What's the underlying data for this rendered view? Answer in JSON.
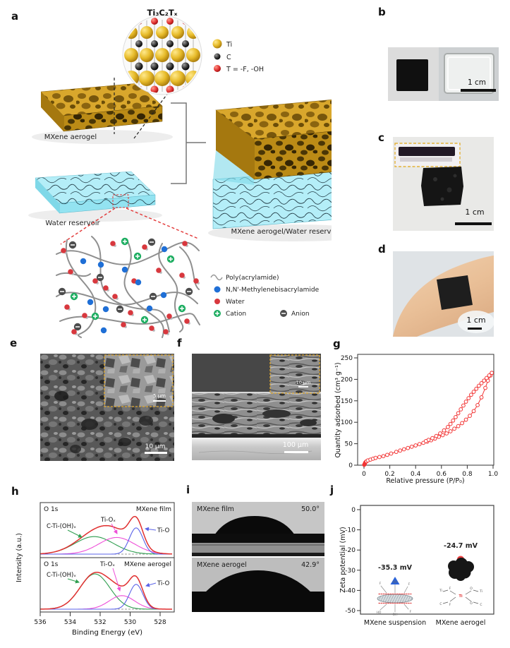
{
  "panels": {
    "a": "a",
    "b": "b",
    "c": "c",
    "d": "d",
    "e": "e",
    "f": "f",
    "g": "g",
    "h": "h",
    "i": "i",
    "j": "j"
  },
  "panel_a": {
    "crystal_title": "Ti₃C₂Tₓ",
    "atom_legend": {
      "ti": "Ti",
      "c": "C",
      "t": "T = -F, -OH"
    },
    "aerogel_label": "MXene aerogel",
    "reservoir_label": "Water reservoir",
    "combined_label": "MXene aerogel/Water reservoir",
    "network_legend": {
      "polymer": "Poly(acrylamide)",
      "crosslinker": "N,N'-Methylenebisacrylamide",
      "water": "Water",
      "cation": "Cation",
      "anion": "Anion"
    }
  },
  "panel_b": {
    "scale": "1 cm"
  },
  "panel_c": {
    "scale": "1 cm"
  },
  "panel_d": {
    "scale": "1 cm"
  },
  "panel_e": {
    "scale": "10 µm",
    "inset_scale": "5 µm"
  },
  "panel_f": {
    "scale": "100 µm",
    "inset_scale": "10 µm"
  },
  "panel_h_labels": {
    "region": "O 1s",
    "film": "MXene film",
    "aerogel": "MXene aerogel",
    "peak_oh": "C-Ti-(OH)ₓ",
    "peak_ox": "Ti-Oₓ",
    "peak_o": "Ti-O",
    "xlabel": "Binding Energy (eV)",
    "ylabel": "Intensity (a.u.)"
  },
  "panel_i": {
    "top_label": "MXene film",
    "top_angle": "50.0°",
    "bottom_label": "MXene aerogel",
    "bottom_angle": "42.9°"
  },
  "panel_j_labels": {
    "ylabel": "Zeta potential (mV)",
    "suspension": "MXene suspension",
    "aerogel": "MXene aerogel",
    "val_suspension": "-35.3 mV",
    "val_aerogel": "-24.7 mV",
    "suspension_atoms": [
      "F",
      "OH",
      "F",
      "HO",
      "OH",
      "F"
    ],
    "aerogel_atoms": [
      "Ti",
      "F",
      "O",
      "Ti",
      "C",
      "F",
      "O",
      "C"
    ],
    "aerogel_center_atom": "Ti"
  },
  "chart_data": [
    {
      "id": "g",
      "type": "line",
      "xlabel": "Relative pressure (P/P₀)",
      "ylabel": "Quantity adsorbed (cm³ g⁻¹)",
      "xlim": [
        0,
        1.0
      ],
      "ylim": [
        0,
        250
      ],
      "grid": false,
      "legend": "none",
      "xticks": [
        0,
        0.2,
        0.4,
        0.6,
        0.8,
        1.0
      ],
      "xtick_labels": [
        "0",
        "0.2",
        "0.4",
        "0.6",
        "0.8",
        "1.0"
      ],
      "yticks": [
        0,
        50,
        100,
        150,
        200,
        250
      ],
      "ytick_labels": [
        "0",
        "50",
        "100",
        "150",
        "200",
        "250"
      ],
      "color": "#f23535",
      "series": [
        {
          "name": "adsorption",
          "x": [
            0.002,
            0.004,
            0.006,
            0.008,
            0.01,
            0.015,
            0.02,
            0.03,
            0.05,
            0.07,
            0.09,
            0.12,
            0.15,
            0.18,
            0.21,
            0.25,
            0.28,
            0.31,
            0.34,
            0.37,
            0.4,
            0.43,
            0.46,
            0.49,
            0.52,
            0.55,
            0.58,
            0.61,
            0.64,
            0.67,
            0.7,
            0.73,
            0.76,
            0.79,
            0.82,
            0.85,
            0.88,
            0.91,
            0.94,
            0.96,
            0.98,
            0.99
          ],
          "y": [
            1,
            2,
            3,
            5,
            6,
            8,
            9,
            11,
            13,
            15,
            17,
            19,
            21,
            24,
            27,
            31,
            34,
            37,
            40,
            43,
            46,
            49,
            52,
            55,
            58,
            62,
            66,
            70,
            74,
            79,
            85,
            91,
            98,
            106,
            115,
            126,
            140,
            158,
            180,
            197,
            209,
            215
          ]
        },
        {
          "name": "desorption",
          "x": [
            0.99,
            0.97,
            0.95,
            0.93,
            0.91,
            0.89,
            0.87,
            0.85,
            0.83,
            0.81,
            0.79,
            0.77,
            0.75,
            0.73,
            0.71,
            0.69,
            0.67,
            0.65,
            0.62,
            0.59,
            0.56,
            0.53,
            0.5,
            0.48
          ],
          "y": [
            215,
            209,
            203,
            197,
            191,
            185,
            178,
            171,
            164,
            156,
            148,
            139,
            130,
            121,
            112,
            104,
            96,
            89,
            81,
            74,
            68,
            63,
            59,
            56
          ]
        }
      ]
    },
    {
      "id": "h",
      "type": "area-curves",
      "xlabel": "Binding Energy (eV)",
      "ylabel": "Intensity (a.u.)",
      "xlim": [
        536,
        527
      ],
      "x_reversed": true,
      "xticks": [
        536,
        534,
        532,
        530,
        528
      ],
      "xtick_labels": [
        "536",
        "534",
        "532",
        "530",
        "528"
      ],
      "envelope_color": "#e02f2f",
      "subpanels": [
        {
          "region": "O 1s",
          "sample": "MXene film",
          "peaks": [
            {
              "name": "C-Ti-(OH)ₓ",
              "color": "#2e9e4f",
              "center": 532.4,
              "sigma": 1.3,
              "amp": 0.4
            },
            {
              "name": "Ti-Oₓ",
              "color": "#ee4fd8",
              "center": 530.9,
              "sigma": 1.2,
              "amp": 0.38
            },
            {
              "name": "Ti-O",
              "color": "#5b63e8",
              "center": 529.6,
              "sigma": 0.45,
              "amp": 0.6
            }
          ]
        },
        {
          "region": "O 1s",
          "sample": "MXene aerogel",
          "peaks": [
            {
              "name": "C-Ti-(OH)ₓ",
              "color": "#2e9e4f",
              "center": 532.35,
              "sigma": 1.0,
              "amp": 0.78
            },
            {
              "name": "Ti-Oₓ",
              "color": "#ee4fd8",
              "center": 530.55,
              "sigma": 0.85,
              "amp": 0.3
            },
            {
              "name": "Ti-O",
              "color": "#5b63e8",
              "center": 529.6,
              "sigma": 0.45,
              "amp": 0.55
            }
          ]
        }
      ]
    },
    {
      "id": "j",
      "type": "scatter",
      "ylabel": "Zeta potential (mV)",
      "ylim": [
        0,
        -50
      ],
      "yticks": [
        0,
        -10,
        -20,
        -30,
        -40,
        -50
      ],
      "ytick_labels": [
        "0",
        "-10",
        "-20",
        "-30",
        "-40",
        "-50"
      ],
      "categories": [
        "MXene suspension",
        "MXene aerogel"
      ],
      "points": [
        {
          "category": "MXene suspension",
          "value_mV": -35.3,
          "marker": "triangle",
          "color": "#2a62d8"
        },
        {
          "category": "MXene aerogel",
          "value_mV": -24.7,
          "marker": "circle",
          "color": "#ee4040"
        }
      ]
    }
  ]
}
